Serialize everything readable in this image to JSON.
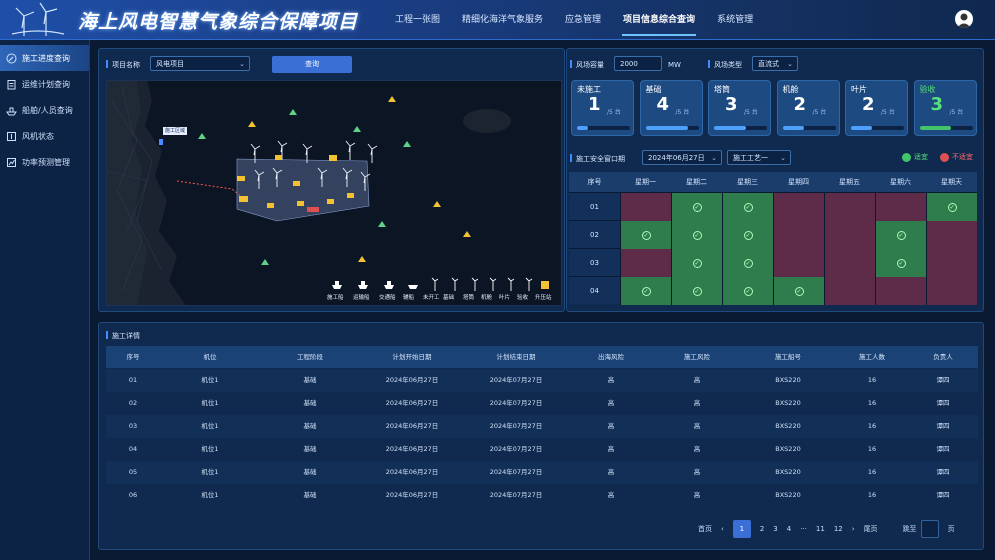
{
  "header": {
    "title": "海上风电智慧气象综合保障项目",
    "nav": [
      "工程一张图",
      "精细化海洋气象服务",
      "应急管理",
      "项目信息综合查询",
      "系统管理"
    ],
    "active_nav": 3
  },
  "sidebar": {
    "items": [
      {
        "label": "施工进度查询",
        "icon": "wrench-icon"
      },
      {
        "label": "运维计划查询",
        "icon": "clipboard-icon"
      },
      {
        "label": "船舶/人员查询",
        "icon": "ship-icon"
      },
      {
        "label": "风机状态",
        "icon": "turbine-icon"
      },
      {
        "label": "功率预测管理",
        "icon": "chart-icon"
      }
    ],
    "active": 0
  },
  "project_filter": {
    "label": "项目名称",
    "value": "风电项目",
    "button": "查询"
  },
  "capacity": {
    "label": "风场容量",
    "value": "2000",
    "unit": "MW",
    "type_label": "风场类型",
    "type_value": "直流式"
  },
  "status_cards": [
    {
      "label": "未施工",
      "count": "1",
      "total": "/5 台",
      "progress": 0.2,
      "color": "blue"
    },
    {
      "label": "基础",
      "count": "4",
      "total": "/5 台",
      "progress": 0.8,
      "color": "blue"
    },
    {
      "label": "塔筒",
      "count": "3",
      "total": "/5 台",
      "progress": 0.6,
      "color": "blue"
    },
    {
      "label": "机舱",
      "count": "2",
      "total": "/5 台",
      "progress": 0.4,
      "color": "blue"
    },
    {
      "label": "叶片",
      "count": "2",
      "total": "/5 台",
      "progress": 0.4,
      "color": "blue"
    },
    {
      "label": "验收",
      "count": "3",
      "total": "/5 台",
      "progress": 0.6,
      "color": "green"
    }
  ],
  "window": {
    "label": "施工安全窗口期",
    "date": "2024年06月27日",
    "process": "施工工艺一",
    "legend_ok": "适宜",
    "legend_no": "不适宜",
    "headers": [
      "序号",
      "星期一",
      "星期二",
      "星期三",
      "星期四",
      "星期五",
      "星期六",
      "星期天"
    ],
    "rows": [
      {
        "id": "01",
        "cells": [
          0,
          1,
          1,
          0,
          0,
          0,
          1
        ]
      },
      {
        "id": "02",
        "cells": [
          1,
          1,
          1,
          0,
          0,
          1,
          0
        ]
      },
      {
        "id": "03",
        "cells": [
          0,
          1,
          1,
          0,
          0,
          1,
          0
        ]
      },
      {
        "id": "04",
        "cells": [
          1,
          1,
          1,
          1,
          0,
          0,
          0
        ]
      }
    ]
  },
  "map": {
    "land_label": "施工区域",
    "legend": [
      "施工船",
      "运输船",
      "交通船",
      "辅船",
      "未开工",
      "基础",
      "塔筒",
      "机舱",
      "叶片",
      "验收",
      "升压站"
    ]
  },
  "detail": {
    "label": "施工详情",
    "headers": [
      "序号",
      "机位",
      "工程阶段",
      "计划开始日期",
      "计划结束日期",
      "出海风险",
      "施工风险",
      "施工船号",
      "施工人数",
      "负责人"
    ],
    "rows": [
      [
        "01",
        "机位1",
        "基础",
        "2024年06月27日",
        "2024年07月27日",
        "高",
        "高",
        "BXS220",
        "16",
        "谭四"
      ],
      [
        "02",
        "机位1",
        "基础",
        "2024年06月27日",
        "2024年07月27日",
        "高",
        "高",
        "BXS220",
        "16",
        "谭四"
      ],
      [
        "03",
        "机位1",
        "基础",
        "2024年06月27日",
        "2024年07月27日",
        "高",
        "高",
        "BXS220",
        "16",
        "谭四"
      ],
      [
        "04",
        "机位1",
        "基础",
        "2024年06月27日",
        "2024年07月27日",
        "高",
        "高",
        "BXS220",
        "16",
        "谭四"
      ],
      [
        "05",
        "机位1",
        "基础",
        "2024年06月27日",
        "2024年07月27日",
        "高",
        "高",
        "BXS220",
        "16",
        "谭四"
      ],
      [
        "06",
        "机位1",
        "基础",
        "2024年06月27日",
        "2024年07月27日",
        "高",
        "高",
        "BXS220",
        "16",
        "谭四"
      ]
    ]
  },
  "pagination": {
    "first": "首页",
    "prev": "‹",
    "pages": [
      "1",
      "2",
      "3",
      "4",
      "···",
      "11",
      "12"
    ],
    "active": "1",
    "next": "›",
    "last": "尾页",
    "jump_label": "跳至",
    "page_unit": "页"
  }
}
